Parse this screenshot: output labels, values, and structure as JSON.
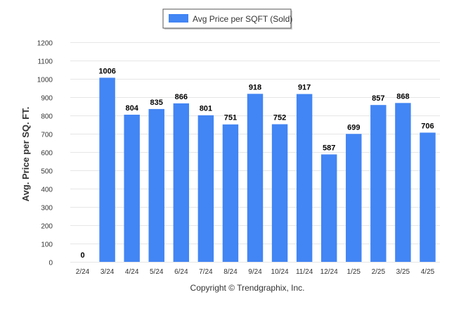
{
  "chart_data": {
    "type": "bar",
    "categories": [
      "2/24",
      "3/24",
      "4/24",
      "5/24",
      "6/24",
      "7/24",
      "8/24",
      "9/24",
      "10/24",
      "11/24",
      "12/24",
      "1/25",
      "2/25",
      "3/25",
      "4/25"
    ],
    "series": [
      {
        "name": "Avg Price per SQFT (Sold)",
        "values": [
          0,
          1006,
          804,
          835,
          866,
          801,
          751,
          918,
          752,
          917,
          587,
          699,
          857,
          868,
          706
        ]
      }
    ],
    "data_labels": [
      "0",
      "1006",
      "804",
      "835",
      "866",
      "801",
      "751",
      "918",
      "752",
      "917",
      "587",
      "699",
      "857",
      "868",
      "706"
    ],
    "ylabel": "Avg. Price per SQ. FT.",
    "xlabel": "",
    "ylim": [
      0,
      1200
    ],
    "yticks": [
      "0",
      "100",
      "200",
      "300",
      "400",
      "500",
      "600",
      "700",
      "800",
      "900",
      "1000",
      "1100",
      "1200"
    ],
    "grid": true,
    "legend_position": "top-center",
    "bar_color": "#4285f4",
    "grid_color": "#e6e6e6",
    "text_color": "#333333"
  },
  "footer": {
    "copyright": "Copyright © Trendgraphix, Inc."
  }
}
